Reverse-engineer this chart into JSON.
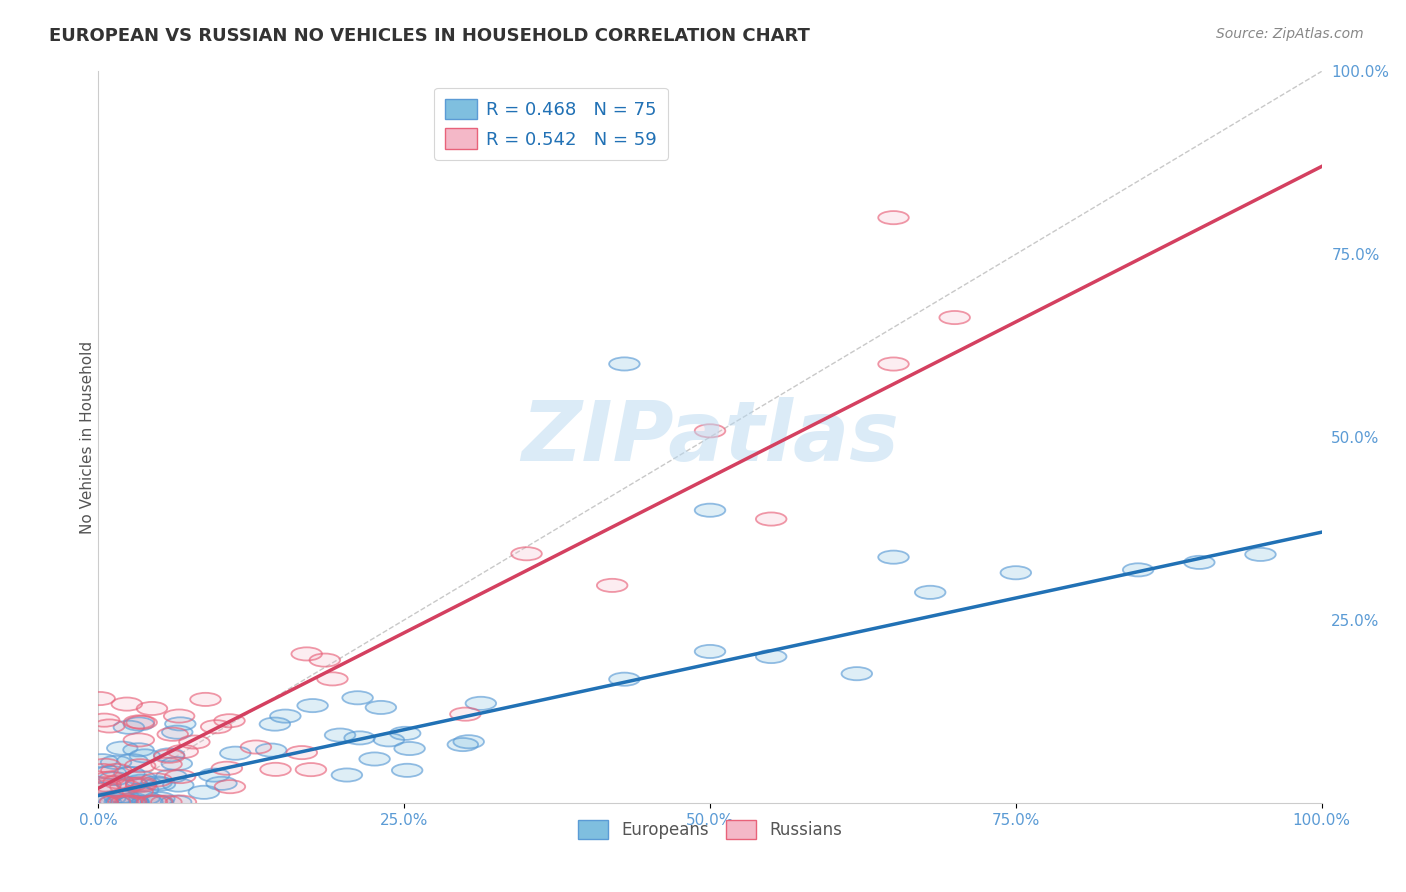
{
  "title": "EUROPEAN VS RUSSIAN NO VEHICLES IN HOUSEHOLD CORRELATION CHART",
  "source": "Source: ZipAtlas.com",
  "ylabel": "No Vehicles in Household",
  "xlim": [
    0,
    1
  ],
  "ylim": [
    0,
    1
  ],
  "xticks": [
    0.0,
    0.25,
    0.5,
    0.75,
    1.0
  ],
  "yticks": [
    0.0,
    0.25,
    0.5,
    0.75,
    1.0
  ],
  "xtick_labels": [
    "0.0%",
    "25.0%",
    "50.0%",
    "75.0%",
    "100.0%"
  ],
  "ytick_labels": [
    "0.0%",
    "25.0%",
    "50.0%",
    "75.0%",
    "100.0%"
  ],
  "right_ytick_labels": [
    "",
    "25.0%",
    "50.0%",
    "75.0%",
    "100.0%"
  ],
  "european_color": "#7fbfdf",
  "european_edge_color": "#5b9bd5",
  "russian_color": "#f4b8c8",
  "russian_edge_color": "#e8627a",
  "european_R": 0.468,
  "european_N": 75,
  "russian_R": 0.542,
  "russian_N": 59,
  "european_trend_slope": 0.36,
  "european_trend_intercept": 0.01,
  "russian_trend_slope": 0.85,
  "russian_trend_intercept": 0.02,
  "eu_line_color": "#2171b5",
  "ru_line_color": "#d44060",
  "diag_color": "#bbbbbb",
  "watermark": "ZIPatlas",
  "background_color": "#ffffff",
  "grid_color": "#d0d0d0",
  "title_color": "#333333",
  "source_color": "#888888",
  "tick_color": "#5b9bd5",
  "ylabel_color": "#555555",
  "legend_label_color": "#2171b5"
}
